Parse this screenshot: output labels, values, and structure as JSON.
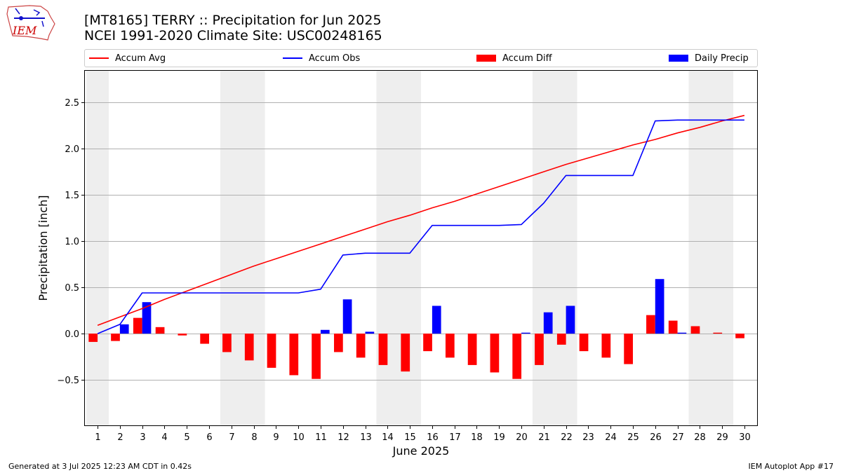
{
  "titles": {
    "line1": "[MT8165] TERRY :: Precipitation for Jun 2025",
    "line2": "NCEI 1991-2020 Climate Site: USC00248165"
  },
  "logo": {
    "text": "IEM",
    "color": "#cc0000"
  },
  "footer": {
    "left": "Generated at 3 Jul 2025 12:23 AM CDT in 0.42s",
    "right": "IEM Autoplot App #17"
  },
  "legend": [
    {
      "label": "Accum Avg",
      "kind": "line",
      "color": "#ff0000"
    },
    {
      "label": "Accum Obs",
      "kind": "line",
      "color": "#0000ff"
    },
    {
      "label": "Accum Diff",
      "kind": "bar",
      "color": "#ff0000"
    },
    {
      "label": "Daily Precip",
      "kind": "bar",
      "color": "#0000ff"
    }
  ],
  "chart_data": {
    "type": "bar",
    "xlabel": "June 2025",
    "ylabel": "Precipitation [inch]",
    "ylim": [
      -1.0,
      2.85
    ],
    "yticks": [
      -0.5,
      0.0,
      0.5,
      1.0,
      1.5,
      2.0,
      2.5
    ],
    "ytick_labels": [
      "−0.5",
      "0.0",
      "0.5",
      "1.0",
      "1.5",
      "2.0",
      "2.5"
    ],
    "x": [
      1,
      2,
      3,
      4,
      5,
      6,
      7,
      8,
      9,
      10,
      11,
      12,
      13,
      14,
      15,
      16,
      17,
      18,
      19,
      20,
      21,
      22,
      23,
      24,
      25,
      26,
      27,
      28,
      29,
      30
    ],
    "weekend_shading_days": [
      [
        1,
        1
      ],
      [
        7,
        8
      ],
      [
        14,
        15
      ],
      [
        21,
        22
      ],
      [
        28,
        29
      ]
    ],
    "grid": "horizontal",
    "colors": {
      "avg": "#ff0000",
      "obs": "#0000ff",
      "diff": "#ff0000",
      "daily": "#0000ff",
      "weekend": "#eeeeee"
    },
    "series": [
      {
        "name": "Accum Avg",
        "type": "line",
        "values": [
          0.09,
          0.18,
          0.27,
          0.37,
          0.46,
          0.55,
          0.64,
          0.73,
          0.81,
          0.89,
          0.97,
          1.05,
          1.13,
          1.21,
          1.28,
          1.36,
          1.43,
          1.51,
          1.59,
          1.67,
          1.75,
          1.83,
          1.9,
          1.97,
          2.04,
          2.1,
          2.17,
          2.23,
          2.3,
          2.36
        ]
      },
      {
        "name": "Accum Obs",
        "type": "line",
        "values": [
          0.0,
          0.1,
          0.44,
          0.44,
          0.44,
          0.44,
          0.44,
          0.44,
          0.44,
          0.44,
          0.48,
          0.85,
          0.87,
          0.87,
          0.87,
          1.17,
          1.17,
          1.17,
          1.17,
          1.18,
          1.41,
          1.71,
          1.71,
          1.71,
          1.71,
          2.3,
          2.31,
          2.31,
          2.31,
          2.31
        ]
      },
      {
        "name": "Accum Diff",
        "type": "bar",
        "values": [
          -0.09,
          -0.08,
          0.17,
          0.07,
          -0.02,
          -0.11,
          -0.2,
          -0.29,
          -0.37,
          -0.45,
          -0.49,
          -0.2,
          -0.26,
          -0.34,
          -0.41,
          -0.19,
          -0.26,
          -0.34,
          -0.42,
          -0.49,
          -0.34,
          -0.12,
          -0.19,
          -0.26,
          -0.33,
          0.2,
          0.14,
          0.08,
          0.01,
          -0.05
        ]
      },
      {
        "name": "Daily Precip",
        "type": "bar",
        "values": [
          0.0,
          0.1,
          0.34,
          0.0,
          0.0,
          0.0,
          0.0,
          0.0,
          0.0,
          0.0,
          0.04,
          0.37,
          0.02,
          0.0,
          0.0,
          0.3,
          0.0,
          0.0,
          0.0,
          0.01,
          0.23,
          0.3,
          0.0,
          0.0,
          0.0,
          0.59,
          0.01,
          0.0,
          0.0,
          0.0
        ]
      }
    ]
  }
}
